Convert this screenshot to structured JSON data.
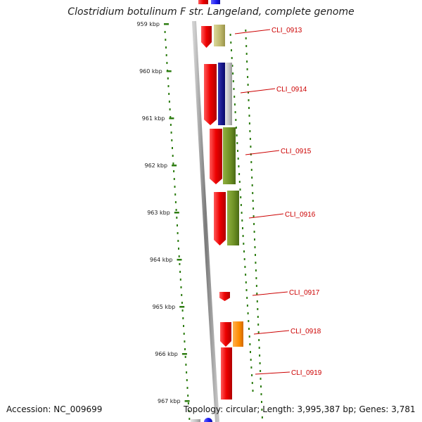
{
  "title": "Clostridium botulinum F str. Langeland, complete genome",
  "accession": "Accession: NC_009699",
  "stats": "Topology: circular; Length: 3,995,387 bp; Genes: 3,781",
  "colors": {
    "backbone": "#8a8a8a",
    "dots": "#2e7d12",
    "label": "#cc0000",
    "cds": "#ee0000",
    "navy": "#101080",
    "olive": "#6b8e23",
    "khaki": "#bdb76b",
    "orange": "#ff8c00",
    "silver": "#c0c0c0",
    "blue": "#1a1aee"
  },
  "axis": {
    "ticks": [
      "959 kbp",
      "960 kbp",
      "961 kbp",
      "962 kbp",
      "963 kbp",
      "964 kbp",
      "965 kbp",
      "966 kbp",
      "967 kbp"
    ]
  },
  "genes": [
    {
      "label": "CLI_0913"
    },
    {
      "label": "CLI_0914"
    },
    {
      "label": "CLI_0915"
    },
    {
      "label": "CLI_0916"
    },
    {
      "label": "CLI_0917"
    },
    {
      "label": "CLI_0918"
    },
    {
      "label": "CLI_0919"
    }
  ]
}
